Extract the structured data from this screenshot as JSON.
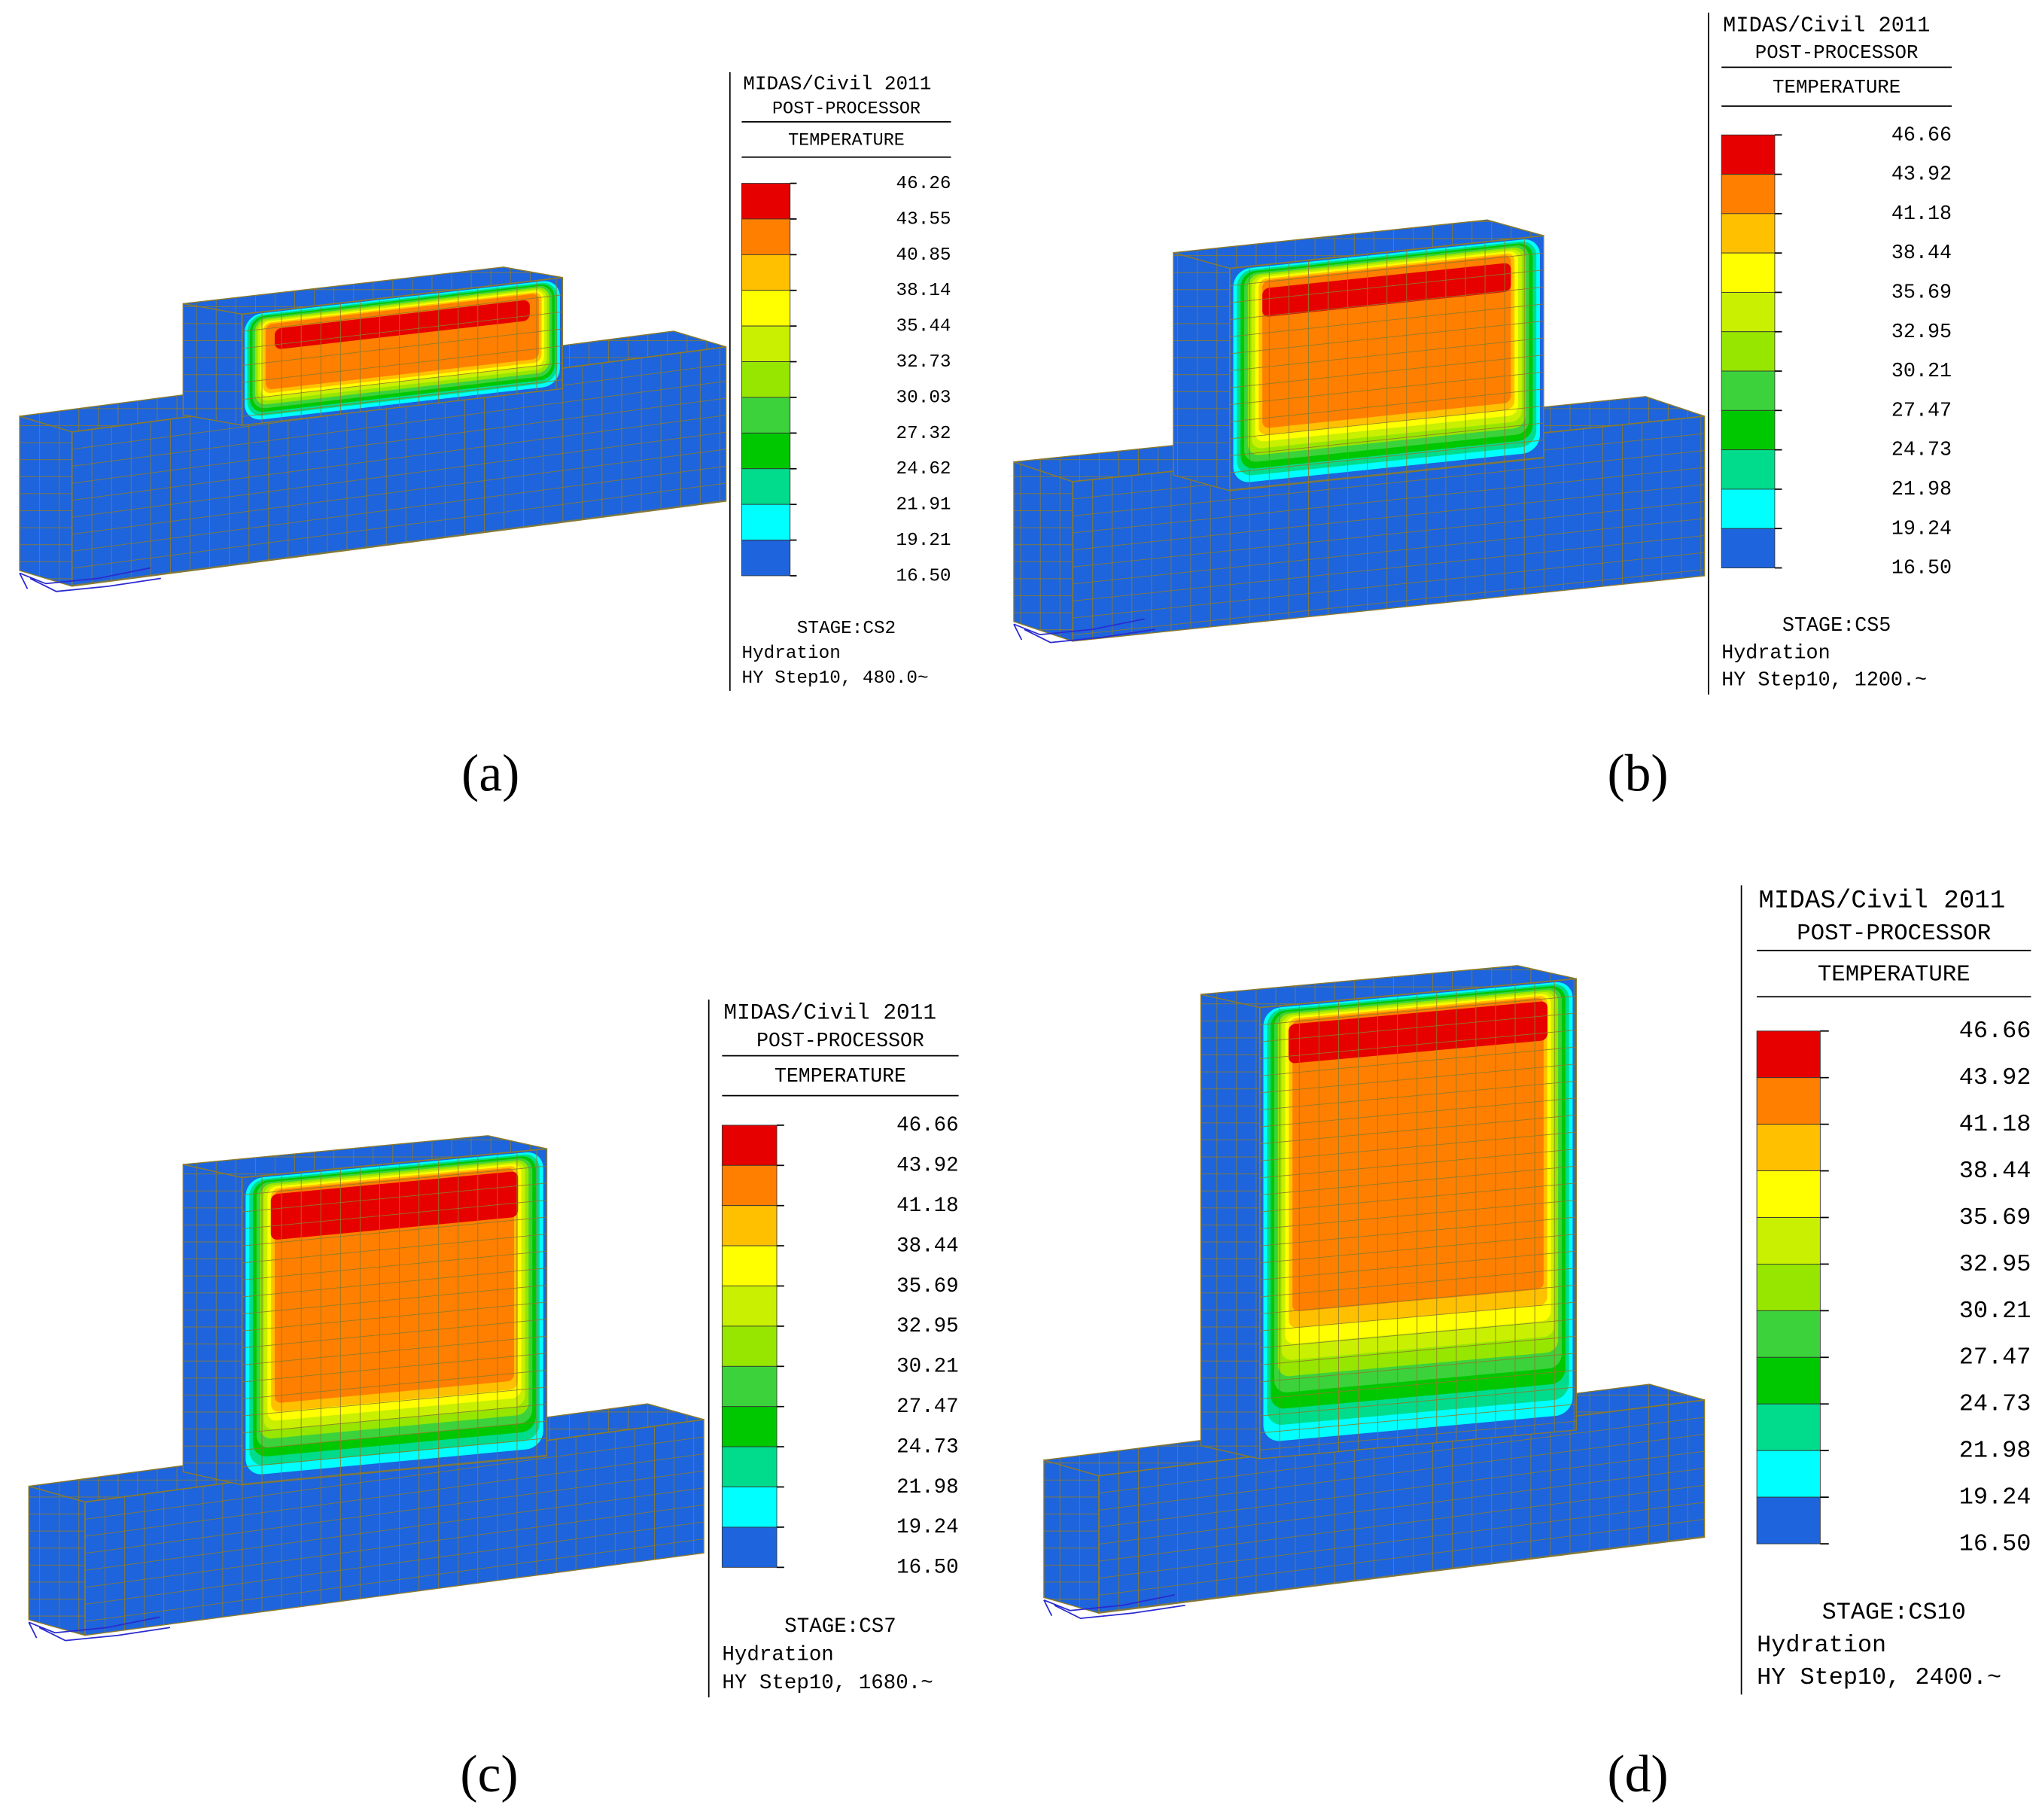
{
  "colors": [
    "#e60000",
    "#ff7f00",
    "#ffc000",
    "#ffff00",
    "#c8f000",
    "#96e600",
    "#3cd23c",
    "#00c800",
    "#00dc8c",
    "#00ffff",
    "#1e64dc"
  ],
  "panels": [
    {
      "label": "(a)",
      "legend": {
        "software": "MIDAS/Civil 2011",
        "module": "POST-PROCESSOR",
        "quantity": "TEMPERATURE",
        "values": [
          "46.26",
          "43.55",
          "40.85",
          "38.14",
          "35.44",
          "32.73",
          "30.03",
          "27.32",
          "24.62",
          "21.91",
          "19.21",
          "16.50"
        ],
        "stage": "STAGE:CS2",
        "analysis": "Hydration",
        "step": "HY Step10, 480.0~"
      }
    },
    {
      "label": "(b)",
      "legend": {
        "software": "MIDAS/Civil 2011",
        "module": "POST-PROCESSOR",
        "quantity": "TEMPERATURE",
        "values": [
          "46.66",
          "43.92",
          "41.18",
          "38.44",
          "35.69",
          "32.95",
          "30.21",
          "27.47",
          "24.73",
          "21.98",
          "19.24",
          "16.50"
        ],
        "stage": "STAGE:CS5",
        "analysis": "Hydration",
        "step": "HY Step10, 1200.~"
      }
    },
    {
      "label": "(c)",
      "legend": {
        "software": "MIDAS/Civil 2011",
        "module": "POST-PROCESSOR",
        "quantity": "TEMPERATURE",
        "values": [
          "46.66",
          "43.92",
          "41.18",
          "38.44",
          "35.69",
          "32.95",
          "30.21",
          "27.47",
          "24.73",
          "21.98",
          "19.24",
          "16.50"
        ],
        "stage": "STAGE:CS7",
        "analysis": "Hydration",
        "step": "HY Step10, 1680.~"
      }
    },
    {
      "label": "(d)",
      "legend": {
        "software": "MIDAS/Civil 2011",
        "module": "POST-PROCESSOR",
        "quantity": "TEMPERATURE",
        "values": [
          "46.66",
          "43.92",
          "41.18",
          "38.44",
          "35.69",
          "32.95",
          "30.21",
          "27.47",
          "24.73",
          "21.98",
          "19.24",
          "16.50"
        ],
        "stage": "STAGE:CS10",
        "analysis": "Hydration",
        "step": "HY Step10, 2400.~"
      }
    }
  ]
}
